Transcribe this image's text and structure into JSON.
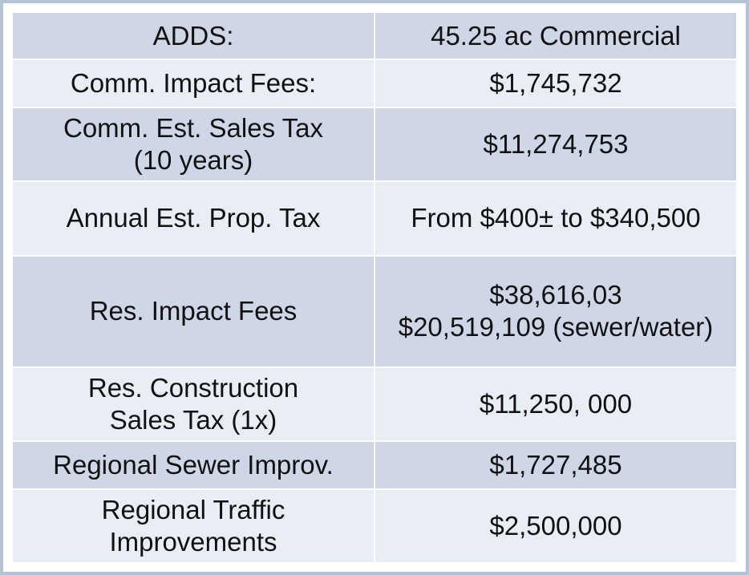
{
  "table": {
    "rows": [
      {
        "label": [
          "ADDS:"
        ],
        "value": [
          "45.25 ac Commercial"
        ]
      },
      {
        "label": [
          "Comm. Impact Fees:"
        ],
        "value": [
          "$1,745,732"
        ]
      },
      {
        "label": [
          "Comm. Est. Sales Tax",
          "(10 years)"
        ],
        "value": [
          "$11,274,753"
        ]
      },
      {
        "label": [
          "Annual Est. Prop. Tax"
        ],
        "value": [
          "From $400± to $340,500"
        ]
      },
      {
        "label": [
          "Res. Impact Fees"
        ],
        "value": [
          "$38,616,03",
          "$20,519,109 (sewer/water)"
        ]
      },
      {
        "label": [
          "Res. Construction",
          "Sales Tax (1x)"
        ],
        "value": [
          "$11,250, 000"
        ]
      },
      {
        "label": [
          "Regional Sewer Improv."
        ],
        "value": [
          "$1,727,485"
        ]
      },
      {
        "label": [
          "Regional Traffic",
          "Improvements"
        ],
        "value": [
          "$2,500,000"
        ]
      }
    ]
  }
}
